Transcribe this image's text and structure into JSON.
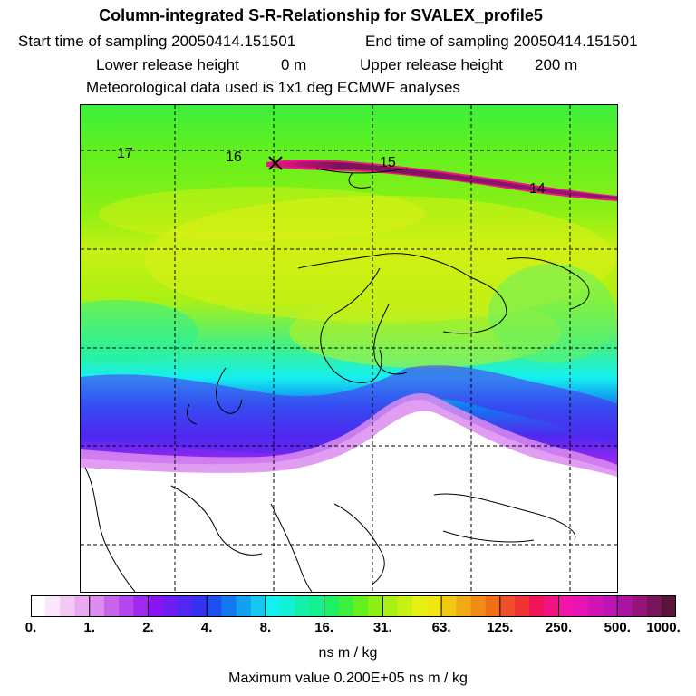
{
  "header": {
    "title": "Column-integrated S-R-Relationship for SVALEX_profile5",
    "start_time": "Start time of sampling 20050414.151501",
    "end_time": "End time of sampling 20050414.151501",
    "lower_release": "Lower release height",
    "lower_release_value": "0 m",
    "upper_release": "Upper release height",
    "upper_release_value": "200 m",
    "met_data": "Meteorological data used is 1x1 deg ECMWF analyses"
  },
  "map": {
    "release_marker": "release-point",
    "track_labels": [
      "17",
      "16",
      "15",
      "14"
    ]
  },
  "colorbar": {
    "ticks": [
      "0.",
      "1.",
      "2.",
      "4.",
      "8.",
      "16.",
      "31.",
      "63.",
      "125.",
      "250.",
      "500.",
      "1000."
    ],
    "colors": [
      "#ffffff",
      "#fbe6fb",
      "#f4c8f4",
      "#ebaaf0",
      "#dc8cf0",
      "#c864ec",
      "#b446f0",
      "#a028f0",
      "#8c14f0",
      "#6e1ef0",
      "#5028f0",
      "#3232f0",
      "#1e50f0",
      "#1478f0",
      "#14a0f0",
      "#14c8f0",
      "#14f0f0",
      "#14f0d2",
      "#14f0aa",
      "#14f08c",
      "#1ef064",
      "#3cf03c",
      "#64f01e",
      "#8cf014",
      "#aaf014",
      "#c8f014",
      "#e6f014",
      "#f0e614",
      "#f0c814",
      "#f0aa14",
      "#f08c14",
      "#f06e14",
      "#f05028",
      "#f03232",
      "#f0145a",
      "#f01482",
      "#f014aa",
      "#e614b4",
      "#d214b4",
      "#be14b4",
      "#aa14a0",
      "#961478",
      "#78145a",
      "#5a143c"
    ],
    "units": "ns m / kg"
  },
  "footer": {
    "max_value": "Maximum value  0.200E+05 ns m / kg"
  }
}
